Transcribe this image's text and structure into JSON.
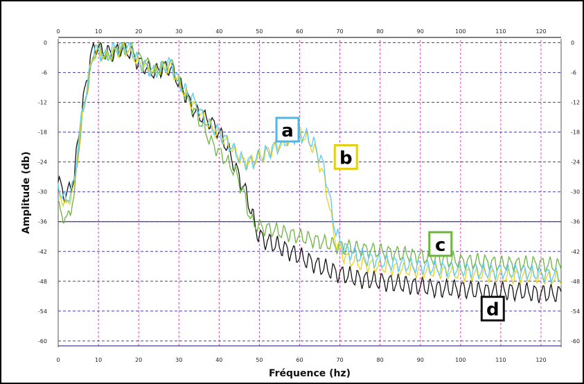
{
  "chart_data": {
    "type": "line",
    "xlabel": "Fréquence (hz)",
    "ylabel": "Amplitude (db)",
    "xlim": [
      0,
      125
    ],
    "ylim": [
      -61,
      0.5
    ],
    "x_ticks": [
      0,
      10,
      20,
      30,
      40,
      50,
      60,
      70,
      80,
      90,
      100,
      110,
      120
    ],
    "y_ticks": [
      0,
      -6,
      -12,
      -18,
      -24,
      -30,
      -36,
      -42,
      -48,
      -54,
      -60
    ],
    "reference_lines": [
      -36,
      -61
    ],
    "grid": true,
    "colors": {
      "a": "#5bc8f0",
      "b": "#e8d21c",
      "c": "#6cb33f",
      "d": "#111111",
      "grid_h": "#3d3da0",
      "grid_v": "#d04aa8"
    },
    "series": [
      {
        "name": "a",
        "color": "#5bc8f0",
        "x": [
          0,
          2,
          4,
          5,
          6,
          7,
          8,
          9,
          10,
          12,
          14,
          16,
          18,
          20,
          22,
          24,
          26,
          28,
          30,
          32,
          34,
          36,
          38,
          40,
          42,
          44,
          46,
          48,
          50,
          52,
          54,
          56,
          58,
          60,
          62,
          64,
          66,
          67,
          68,
          69,
          70,
          72,
          75,
          80,
          85,
          90,
          95,
          100,
          105,
          110,
          115,
          120,
          125
        ],
        "values": [
          -29,
          -32,
          -28,
          -20,
          -14,
          -10,
          -5,
          -1,
          -2,
          -3,
          -1,
          -1,
          -1,
          -4,
          -5,
          -6,
          -5,
          -4,
          -8,
          -10,
          -12,
          -15,
          -17,
          -18,
          -20,
          -22,
          -24,
          -24,
          -23,
          -22,
          -21,
          -20,
          -19,
          -18.5,
          -19,
          -21,
          -25,
          -29,
          -34,
          -38,
          -40,
          -42,
          -43,
          -44,
          -44.5,
          -45,
          -45.5,
          -45.5,
          -46,
          -46,
          -46,
          -46.5,
          -47
        ],
        "amp": 1.3
      },
      {
        "name": "b",
        "color": "#e8d21c",
        "x": [
          0,
          2,
          4,
          5,
          6,
          7,
          8,
          9,
          10,
          12,
          14,
          16,
          18,
          20,
          22,
          24,
          26,
          28,
          30,
          32,
          34,
          36,
          38,
          40,
          42,
          44,
          46,
          48,
          50,
          52,
          54,
          56,
          58,
          60,
          62,
          64,
          66,
          67,
          68,
          69,
          70,
          72,
          75,
          80,
          85,
          90,
          95,
          100,
          105,
          110,
          115,
          120,
          125
        ],
        "values": [
          -30,
          -33,
          -29,
          -21,
          -15,
          -10,
          -5,
          -2,
          -2,
          -3,
          -2,
          -1,
          -2,
          -4,
          -5,
          -6,
          -5,
          -5,
          -8,
          -11,
          -13,
          -15,
          -17,
          -18.5,
          -20,
          -22,
          -24,
          -24,
          -23,
          -22,
          -21,
          -20,
          -19,
          -18,
          -19.5,
          -22,
          -27,
          -31,
          -36,
          -40,
          -42,
          -43.5,
          -44.5,
          -45,
          -45.5,
          -46,
          -46,
          -46.5,
          -46.5,
          -47,
          -47,
          -47,
          -47.5
        ],
        "amp": 1.2
      },
      {
        "name": "c",
        "color": "#6cb33f",
        "x": [
          0,
          2,
          4,
          5,
          6,
          7,
          8,
          9,
          10,
          12,
          14,
          16,
          18,
          20,
          22,
          24,
          26,
          28,
          30,
          32,
          34,
          36,
          38,
          40,
          42,
          44,
          45,
          46,
          47,
          48,
          50,
          55,
          60,
          65,
          70,
          75,
          80,
          85,
          90,
          95,
          100,
          105,
          110,
          115,
          120,
          125
        ],
        "values": [
          -33,
          -36,
          -31,
          -22,
          -15,
          -10,
          -6,
          -2,
          -1,
          -3,
          -2,
          -1,
          -1,
          -3,
          -4,
          -6,
          -5,
          -4,
          -8,
          -11,
          -14,
          -17,
          -20,
          -22,
          -24,
          -26,
          -28,
          -30,
          -33,
          -36,
          -37,
          -38,
          -39,
          -40,
          -41,
          -41.5,
          -42,
          -42.5,
          -43,
          -43.5,
          -44,
          -44,
          -44.5,
          -44.5,
          -44.5,
          -45
        ],
        "amp": 1.3
      },
      {
        "name": "d",
        "color": "#111111",
        "x": [
          0,
          2,
          4,
          5,
          6,
          7,
          8,
          9,
          10,
          11,
          12,
          14,
          16,
          18,
          20,
          22,
          24,
          26,
          28,
          30,
          32,
          34,
          36,
          38,
          40,
          42,
          44,
          45,
          46,
          47,
          48,
          49,
          50,
          52,
          55,
          60,
          65,
          70,
          75,
          80,
          85,
          90,
          95,
          100,
          105,
          110,
          115,
          120,
          125
        ],
        "values": [
          -28,
          -31,
          -27,
          -19,
          -13,
          -8,
          -3,
          -1,
          -1,
          -1.5,
          -2,
          -2,
          -1,
          -2,
          -4,
          -5,
          -6,
          -5,
          -5,
          -8,
          -11,
          -14,
          -15,
          -16,
          -18,
          -21,
          -25,
          -27,
          -29,
          -31,
          -34,
          -37,
          -39,
          -40,
          -41,
          -43,
          -45,
          -46.5,
          -47.5,
          -48,
          -48.5,
          -49,
          -49.5,
          -49.5,
          -50,
          -50,
          -50,
          -50.5,
          -50.5
        ],
        "amp": 1.6
      }
    ],
    "annotations": [
      {
        "text": "a",
        "box_color": "#4fb6e6",
        "x": 57,
        "y": -17.5
      },
      {
        "text": "b",
        "box_color": "#e3cf1a",
        "x": 71.5,
        "y": -23
      },
      {
        "text": "c",
        "box_color": "#6cb33f",
        "x": 95,
        "y": -40.5
      },
      {
        "text": "d",
        "box_color": "#111111",
        "x": 108,
        "y": -53.5
      }
    ]
  }
}
